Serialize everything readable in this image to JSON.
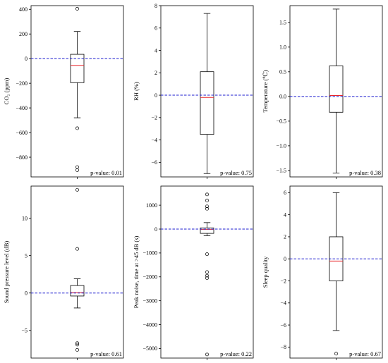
{
  "chart_data": [
    {
      "type": "box",
      "ylabel": "CO₂ (ppm)",
      "ylim": [
        -960,
        430
      ],
      "yticks": [
        400,
        200,
        0,
        -200,
        -400,
        -600,
        -800
      ],
      "tick_labels": [
        "400",
        "200",
        "0",
        "−200",
        "−400",
        "−600",
        "−800"
      ],
      "box": {
        "whisker_low": -480,
        "q1": -195,
        "median": -55,
        "q3": 35,
        "whisker_high": 220
      },
      "outliers": [
        405,
        -565,
        -880,
        -905
      ],
      "reference_line": 0,
      "annotation": "p-value: 0.01"
    },
    {
      "type": "box",
      "ylabel": "RH (%)",
      "ylim": [
        -7.3,
        8
      ],
      "yticks": [
        8,
        6,
        4,
        2,
        0,
        -2,
        -4,
        -6
      ],
      "tick_labels": [
        "8",
        "6",
        "4",
        "2",
        "0",
        "−2",
        "−4",
        "−6"
      ],
      "box": {
        "whisker_low": -7.0,
        "q1": -3.5,
        "median": -0.2,
        "q3": 2.1,
        "whisker_high": 7.3
      },
      "outliers": [],
      "reference_line": 0,
      "annotation": "p-value: 0.75"
    },
    {
      "type": "box",
      "ylabel": "Temperature (℃)",
      "ylim": [
        -1.63,
        1.84
      ],
      "yticks": [
        1.5,
        1.0,
        0.5,
        0.0,
        -0.5,
        -1.0,
        -1.5
      ],
      "tick_labels": [
        "1.5",
        "1.0",
        "0.5",
        "0.0",
        "−0.5",
        "−1.0",
        "−1.5"
      ],
      "box": {
        "whisker_low": -1.55,
        "q1": -0.32,
        "median": 0.02,
        "q3": 0.62,
        "whisker_high": 1.77
      },
      "outliers": [],
      "reference_line": 0,
      "annotation": "p-value: 0.38"
    },
    {
      "type": "box",
      "ylabel": "Sound pressure level (dB)",
      "ylim": [
        -8.7,
        14.3
      ],
      "yticks": [
        10,
        5,
        0,
        -5
      ],
      "tick_labels": [
        "10",
        "5",
        "0",
        "−5"
      ],
      "box": {
        "whisker_low": -2.0,
        "q1": -0.4,
        "median": 0.05,
        "q3": 1.0,
        "whisker_high": 1.9
      },
      "outliers": [
        13.8,
        5.9,
        -6.7,
        -6.9,
        -7.6
      ],
      "reference_line": 0,
      "annotation": "p-value: 0.61"
    },
    {
      "type": "box",
      "ylabel": "Peak noise, time at >45 dB (s)",
      "ylim": [
        -5400,
        1800
      ],
      "yticks": [
        1000,
        0,
        -1000,
        -2000,
        -3000,
        -4000,
        -5000
      ],
      "tick_labels": [
        "1000",
        "0",
        "−1000",
        "−2000",
        "−3000",
        "−4000",
        "−5000"
      ],
      "box": {
        "whisker_low": -280,
        "q1": -180,
        "median": -10,
        "q3": 50,
        "whisker_high": 270
      },
      "outliers": [
        1450,
        1200,
        950,
        850,
        -1050,
        -1800,
        -1950,
        -2050,
        -5250
      ],
      "reference_line": 0,
      "annotation": "p-value: 0.22"
    },
    {
      "type": "box",
      "ylabel": "Sleep quality",
      "ylim": [
        -9.0,
        6.6
      ],
      "yticks": [
        6,
        4,
        2,
        0,
        -2,
        -4,
        -6,
        -8
      ],
      "tick_labels": [
        "6",
        "4",
        "2",
        "0",
        "−2",
        "−4",
        "−6",
        "−8"
      ],
      "box": {
        "whisker_low": -6.5,
        "q1": -2.0,
        "median": -0.2,
        "q3": 2.0,
        "whisker_high": 6.0
      },
      "outliers": [
        -8.6
      ],
      "reference_line": 0,
      "annotation": "p-value: 0.67"
    }
  ],
  "colors": {
    "box": "#000000",
    "median": "#e8262a",
    "reference_line": "#1f1fcf",
    "outlier_edge": "#000000"
  }
}
